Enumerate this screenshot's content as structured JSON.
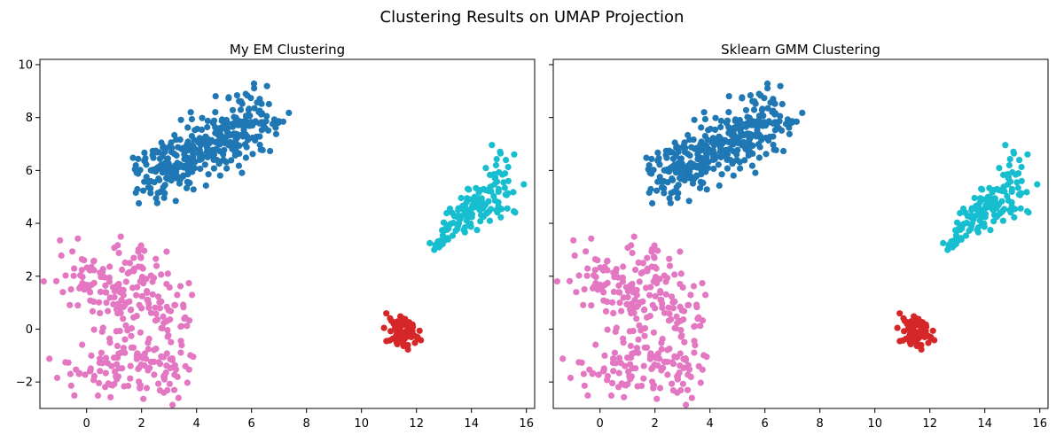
{
  "suptitle": "Clustering Results on UMAP Projection",
  "chart_data": [
    {
      "type": "scatter",
      "title": "My EM Clustering",
      "xlabel": "",
      "ylabel": "",
      "xlim": [
        -1.7,
        16.3
      ],
      "ylim": [
        -3.0,
        10.2
      ],
      "xticks": [
        0,
        2,
        4,
        6,
        8,
        10,
        12,
        14,
        16
      ],
      "yticks": [
        -2,
        0,
        2,
        4,
        6,
        8,
        10
      ],
      "grid": false,
      "clusters": [
        {
          "color": "#1f77b4",
          "shape": "upper",
          "n": 360
        },
        {
          "color": "#17becf",
          "shape": "right",
          "n": 150
        },
        {
          "color": "#e377c2",
          "shape": "lower-left",
          "n": 300
        },
        {
          "color": "#d62728",
          "shape": "small",
          "n": 80
        }
      ]
    },
    {
      "type": "scatter",
      "title": "Sklearn GMM Clustering",
      "xlabel": "",
      "ylabel": "",
      "xlim": [
        -1.7,
        16.3
      ],
      "ylim": [
        -3.0,
        10.2
      ],
      "xticks": [
        0,
        2,
        4,
        6,
        8,
        10,
        12,
        14,
        16
      ],
      "yticks": [
        -2,
        0,
        2,
        4,
        6,
        8,
        10
      ],
      "grid": false,
      "clusters": [
        {
          "color": "#1f77b4",
          "shape": "upper",
          "n": 360
        },
        {
          "color": "#17becf",
          "shape": "right",
          "n": 150
        },
        {
          "color": "#e377c2",
          "shape": "lower-left",
          "n": 300
        },
        {
          "color": "#d62728",
          "shape": "small",
          "n": 80
        }
      ]
    }
  ]
}
